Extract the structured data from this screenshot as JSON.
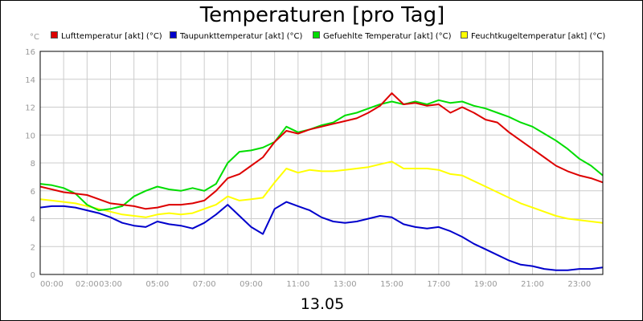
{
  "chart_data": {
    "type": "line",
    "title": "Temperaturen [pro Tag]",
    "xlabel": "13.05",
    "y_unit": "°C",
    "ylim": [
      0,
      16
    ],
    "xlim": [
      "00:00",
      "24:00"
    ],
    "grid": true,
    "legend_placement": "top",
    "y_ticks": [
      "0",
      "2",
      "4",
      "6",
      "8",
      "10",
      "12",
      "14",
      "16"
    ],
    "x_ticks": [
      "00:00",
      "02:00",
      "03:00",
      "05:00",
      "07:00",
      "09:00",
      "11:00",
      "13:00",
      "15:00",
      "17:00",
      "19:00",
      "21:00",
      "23:00"
    ],
    "x": [
      "00:00",
      "00:30",
      "01:00",
      "01:30",
      "02:00",
      "02:30",
      "03:00",
      "03:30",
      "04:00",
      "04:30",
      "05:00",
      "05:30",
      "06:00",
      "06:30",
      "07:00",
      "07:30",
      "08:00",
      "08:30",
      "09:00",
      "09:30",
      "10:00",
      "10:30",
      "11:00",
      "11:30",
      "12:00",
      "12:30",
      "13:00",
      "13:30",
      "14:00",
      "14:30",
      "15:00",
      "15:30",
      "16:00",
      "16:30",
      "17:00",
      "17:30",
      "18:00",
      "18:30",
      "19:00",
      "19:30",
      "20:00",
      "20:30",
      "21:00",
      "21:30",
      "22:00",
      "22:30",
      "23:00",
      "23:30",
      "24:00"
    ],
    "series": [
      {
        "name": "Lufttemperatur [akt] (°C)",
        "color": "#dd0000",
        "values": [
          6.3,
          6.1,
          5.9,
          5.8,
          5.7,
          5.4,
          5.1,
          5.0,
          4.9,
          4.7,
          4.8,
          5.0,
          5.0,
          5.1,
          5.3,
          6.0,
          6.9,
          7.2,
          7.8,
          8.4,
          9.5,
          10.3,
          10.1,
          10.4,
          10.6,
          10.8,
          11.0,
          11.2,
          11.6,
          12.1,
          13.0,
          12.2,
          12.3,
          12.1,
          12.2,
          11.6,
          12.0,
          11.6,
          11.1,
          10.9,
          10.2,
          9.6,
          9.0,
          8.4,
          7.8,
          7.4,
          7.1,
          6.9,
          6.6
        ]
      },
      {
        "name": "Taupunkttemperatur [akt] (°C)",
        "color": "#0000cc",
        "values": [
          4.8,
          4.9,
          4.9,
          4.8,
          4.6,
          4.4,
          4.1,
          3.7,
          3.5,
          3.4,
          3.8,
          3.6,
          3.5,
          3.3,
          3.7,
          4.3,
          5.0,
          4.2,
          3.4,
          2.9,
          4.7,
          5.2,
          4.9,
          4.6,
          4.1,
          3.8,
          3.7,
          3.8,
          4.0,
          4.2,
          4.1,
          3.6,
          3.4,
          3.3,
          3.4,
          3.1,
          2.7,
          2.2,
          1.8,
          1.4,
          1.0,
          0.7,
          0.6,
          0.4,
          0.3,
          0.3,
          0.4,
          0.4,
          0.5
        ]
      },
      {
        "name": "Gefuehlte Temperatur [akt] (°C)",
        "color": "#00dd00",
        "values": [
          6.5,
          6.4,
          6.2,
          5.8,
          5.0,
          4.6,
          4.7,
          4.9,
          5.6,
          6.0,
          6.3,
          6.1,
          6.0,
          6.2,
          6.0,
          6.5,
          8.0,
          8.8,
          8.9,
          9.1,
          9.5,
          10.6,
          10.2,
          10.4,
          10.7,
          10.9,
          11.4,
          11.6,
          11.9,
          12.2,
          12.4,
          12.2,
          12.4,
          12.2,
          12.5,
          12.3,
          12.4,
          12.1,
          11.9,
          11.6,
          11.3,
          10.9,
          10.6,
          10.1,
          9.6,
          9.0,
          8.3,
          7.8,
          7.1
        ]
      },
      {
        "name": "Feuchtkugeltemperatur [akt] (°C)",
        "color": "#ffff00",
        "values": [
          5.4,
          5.3,
          5.2,
          5.1,
          4.9,
          4.7,
          4.5,
          4.3,
          4.2,
          4.1,
          4.3,
          4.4,
          4.3,
          4.4,
          4.7,
          5.0,
          5.6,
          5.3,
          5.4,
          5.5,
          6.6,
          7.6,
          7.3,
          7.5,
          7.4,
          7.4,
          7.5,
          7.6,
          7.7,
          7.9,
          8.1,
          7.6,
          7.6,
          7.6,
          7.5,
          7.2,
          7.1,
          6.7,
          6.3,
          5.9,
          5.5,
          5.1,
          4.8,
          4.5,
          4.2,
          4.0,
          3.9,
          3.8,
          3.7
        ]
      }
    ]
  }
}
